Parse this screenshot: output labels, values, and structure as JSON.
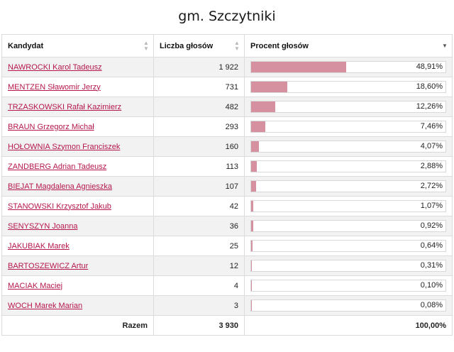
{
  "title": "gm. Szczytniki",
  "headers": {
    "candidate": "Kandydat",
    "votes": "Liczba głosów",
    "percent": "Procent głosów"
  },
  "colors": {
    "bar": "#d5919f",
    "link": "#b5174a"
  },
  "rows": [
    {
      "name": "NAWROCKI Karol Tadeusz",
      "votes": "1 922",
      "percent": "48,91%",
      "fraction": 0.4891
    },
    {
      "name": "MENTZEN Sławomir Jerzy",
      "votes": "731",
      "percent": "18,60%",
      "fraction": 0.186
    },
    {
      "name": "TRZASKOWSKI Rafał Kazimierz",
      "votes": "482",
      "percent": "12,26%",
      "fraction": 0.1226
    },
    {
      "name": "BRAUN Grzegorz Michał",
      "votes": "293",
      "percent": "7,46%",
      "fraction": 0.0746
    },
    {
      "name": "HOŁOWNIA Szymon Franciszek",
      "votes": "160",
      "percent": "4,07%",
      "fraction": 0.0407
    },
    {
      "name": "ZANDBERG Adrian Tadeusz",
      "votes": "113",
      "percent": "2,88%",
      "fraction": 0.0288
    },
    {
      "name": "BIEJAT Magdalena Agnieszka",
      "votes": "107",
      "percent": "2,72%",
      "fraction": 0.0272
    },
    {
      "name": "STANOWSKI Krzysztof Jakub",
      "votes": "42",
      "percent": "1,07%",
      "fraction": 0.0107
    },
    {
      "name": "SENYSZYN Joanna",
      "votes": "36",
      "percent": "0,92%",
      "fraction": 0.0092
    },
    {
      "name": "JAKUBIAK Marek",
      "votes": "25",
      "percent": "0,64%",
      "fraction": 0.0064
    },
    {
      "name": "BARTOSZEWICZ Artur",
      "votes": "12",
      "percent": "0,31%",
      "fraction": 0.0031
    },
    {
      "name": "MACIAK Maciej",
      "votes": "4",
      "percent": "0,10%",
      "fraction": 0.001
    },
    {
      "name": "WOCH Marek Marian",
      "votes": "3",
      "percent": "0,08%",
      "fraction": 0.0008
    }
  ],
  "footer": {
    "label": "Razem",
    "votes": "3 930",
    "percent": "100,00%"
  },
  "icons": {
    "sort_unsorted": "sort-both-icon",
    "sort_desc": "sort-desc-icon"
  }
}
